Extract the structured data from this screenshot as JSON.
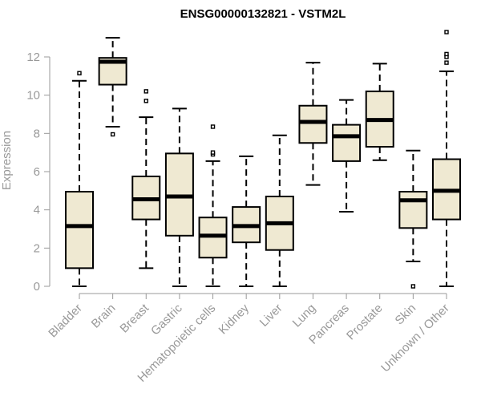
{
  "chart_data": {
    "type": "boxplot",
    "title": "ENSG00000132821 - VSTM2L",
    "xlabel": "",
    "ylabel": "Expression",
    "ylim": [
      0,
      13.3
    ],
    "yticks": [
      0,
      2,
      4,
      6,
      8,
      10,
      12
    ],
    "grid": false,
    "box_fill": "#efe9d2",
    "box_stroke": "#000000",
    "axis_color": "#999999",
    "categories": [
      "Bladder",
      "Brain",
      "Breast",
      "Gastric",
      "Hematopoietic cells",
      "Kidney",
      "Liver",
      "Lung",
      "Pancreas",
      "Prostate",
      "Skin",
      "Unknown / Other"
    ],
    "boxes": [
      {
        "category": "Bladder",
        "whisker_low": 0.0,
        "q1": 0.95,
        "median": 3.15,
        "q3": 4.95,
        "whisker_high": 10.75,
        "outliers": [
          11.15
        ]
      },
      {
        "category": "Brain",
        "whisker_low": 8.35,
        "q1": 10.55,
        "median": 11.75,
        "q3": 11.95,
        "whisker_high": 13.0,
        "outliers": [
          7.95
        ]
      },
      {
        "category": "Breast",
        "whisker_low": 0.95,
        "q1": 3.5,
        "median": 4.55,
        "q3": 5.75,
        "whisker_high": 8.85,
        "outliers": [
          9.7,
          10.2
        ]
      },
      {
        "category": "Gastric",
        "whisker_low": 0.0,
        "q1": 2.65,
        "median": 4.7,
        "q3": 6.95,
        "whisker_high": 9.3,
        "outliers": []
      },
      {
        "category": "Hematopoietic cells",
        "whisker_low": 0.0,
        "q1": 1.5,
        "median": 2.65,
        "q3": 3.6,
        "whisker_high": 6.55,
        "outliers": [
          6.9,
          7.0,
          8.35
        ]
      },
      {
        "category": "Kidney",
        "whisker_low": 0.0,
        "q1": 2.3,
        "median": 3.15,
        "q3": 4.15,
        "whisker_high": 6.8,
        "outliers": []
      },
      {
        "category": "Liver",
        "whisker_low": 0.0,
        "q1": 1.9,
        "median": 3.3,
        "q3": 4.7,
        "whisker_high": 7.9,
        "outliers": []
      },
      {
        "category": "Lung",
        "whisker_low": 5.3,
        "q1": 7.5,
        "median": 8.6,
        "q3": 9.45,
        "whisker_high": 11.7,
        "outliers": []
      },
      {
        "category": "Pancreas",
        "whisker_low": 3.9,
        "q1": 6.55,
        "median": 7.85,
        "q3": 8.45,
        "whisker_high": 9.75,
        "outliers": []
      },
      {
        "category": "Prostate",
        "whisker_low": 6.6,
        "q1": 7.3,
        "median": 8.7,
        "q3": 10.2,
        "whisker_high": 11.65,
        "outliers": []
      },
      {
        "category": "Skin",
        "whisker_low": 1.3,
        "q1": 3.05,
        "median": 4.5,
        "q3": 4.95,
        "whisker_high": 7.1,
        "outliers": [
          0.0
        ]
      },
      {
        "category": "Unknown / Other",
        "whisker_low": 0.0,
        "q1": 3.5,
        "median": 5.0,
        "q3": 6.65,
        "whisker_high": 11.25,
        "outliers": [
          11.7,
          12.0,
          12.15,
          13.3
        ]
      }
    ]
  }
}
